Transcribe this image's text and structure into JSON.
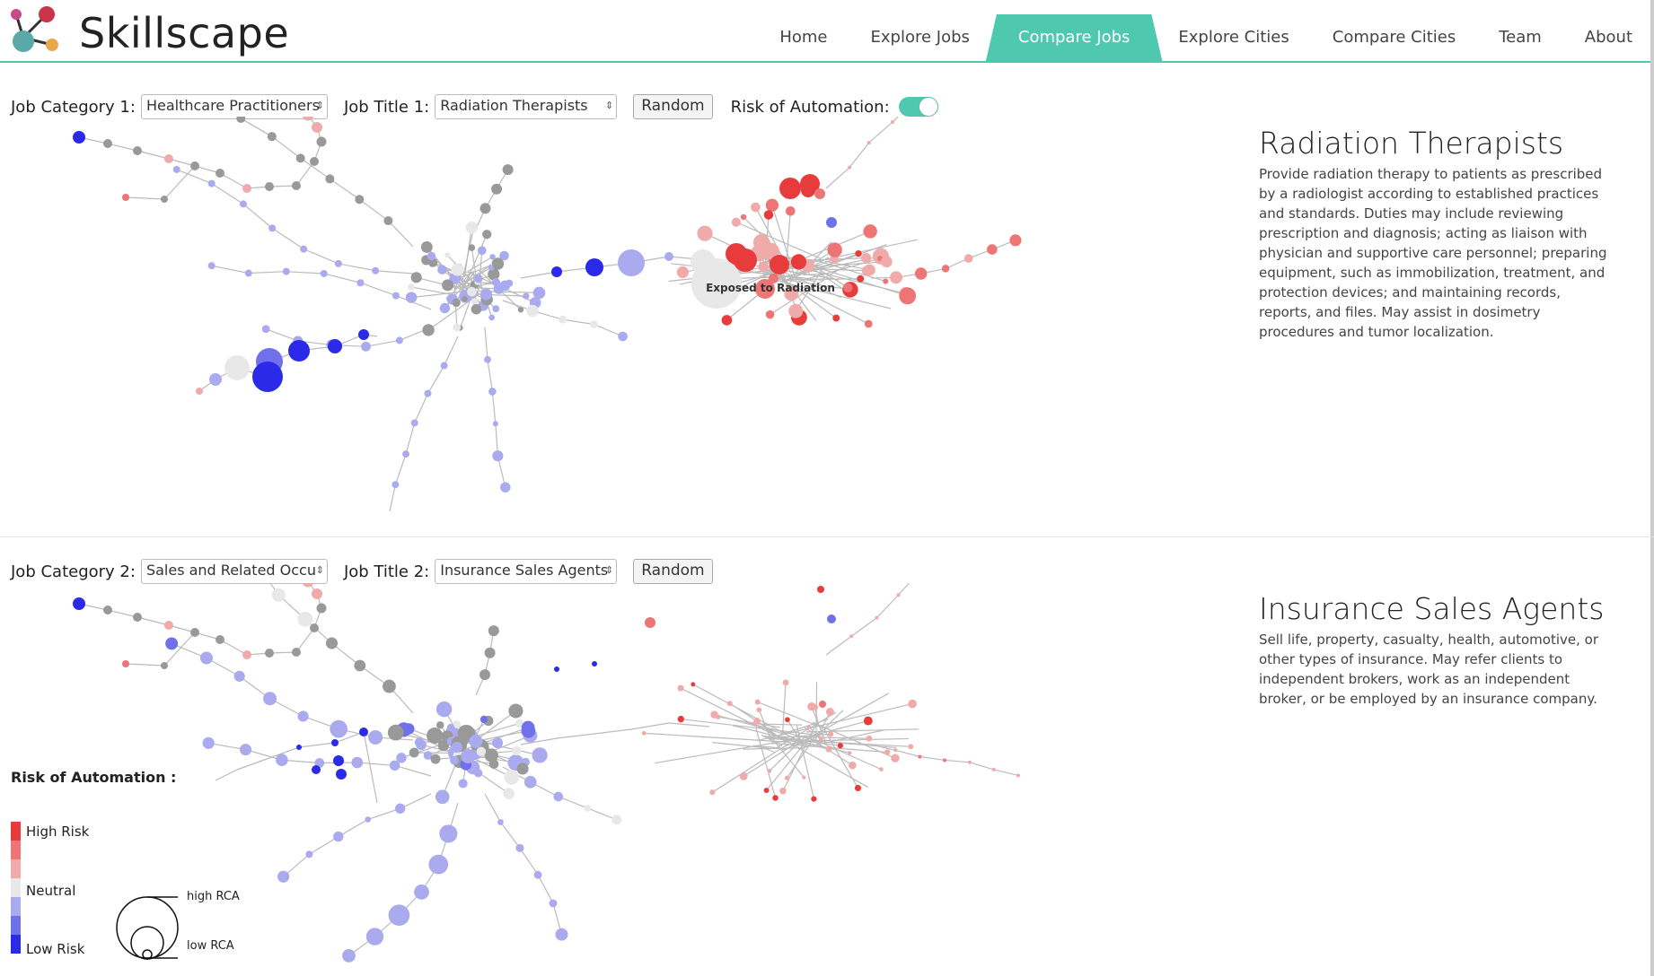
{
  "app": {
    "name": "Skillscape"
  },
  "nav": {
    "items": [
      "Home",
      "Explore Jobs",
      "Compare Jobs",
      "Explore Cities",
      "Compare Cities",
      "Team",
      "About"
    ],
    "active": "Compare Jobs"
  },
  "panel1": {
    "category_label": "Job Category 1:",
    "category_value": "Healthcare Practitioners",
    "title_label": "Job Title 1:",
    "title_value": "Radiation Therapists",
    "random_label": "Random",
    "risk_label": "Risk of Automation:",
    "risk_enabled": true,
    "job_name": "Radiation Therapists",
    "job_description": "Provide radiation therapy to patients as prescribed by a radiologist according to established practices and standards. Duties may include reviewing prescription and diagnosis; acting as liaison with physician and supportive care personnel; preparing equipment, such as immobilization, treatment, and protection devices; and maintaining records, reports, and files. May assist in dosimetry procedures and tumor localization.",
    "annotation": "Exposed to Radiation"
  },
  "panel2": {
    "category_label": "Job Category 2:",
    "category_value": "Sales and Related Occu",
    "title_label": "Job Title 2:",
    "title_value": "Insurance Sales Agents",
    "random_label": "Random",
    "job_name": "Insurance Sales Agents",
    "job_description": "Sell life, property, casualty, health, automotive, or other types of insurance. May refer clients to independent brokers, work as an independent broker, or be employed by an insurance company."
  },
  "legend": {
    "title": "Risk of Automation :",
    "high": "High Risk",
    "neutral": "Neutral",
    "low": "Low Risk",
    "rca_high": "high RCA",
    "rca_low": "low RCA",
    "colors": [
      "#e83b3b",
      "#ee7575",
      "#f0aaaa",
      "#e8e8e8",
      "#aaaaee",
      "#7070ea",
      "#2a2ae8"
    ]
  },
  "colors": {
    "accent": "#4ec9b0",
    "edge": "#bbbbbb",
    "neutral_node": "#999999"
  }
}
